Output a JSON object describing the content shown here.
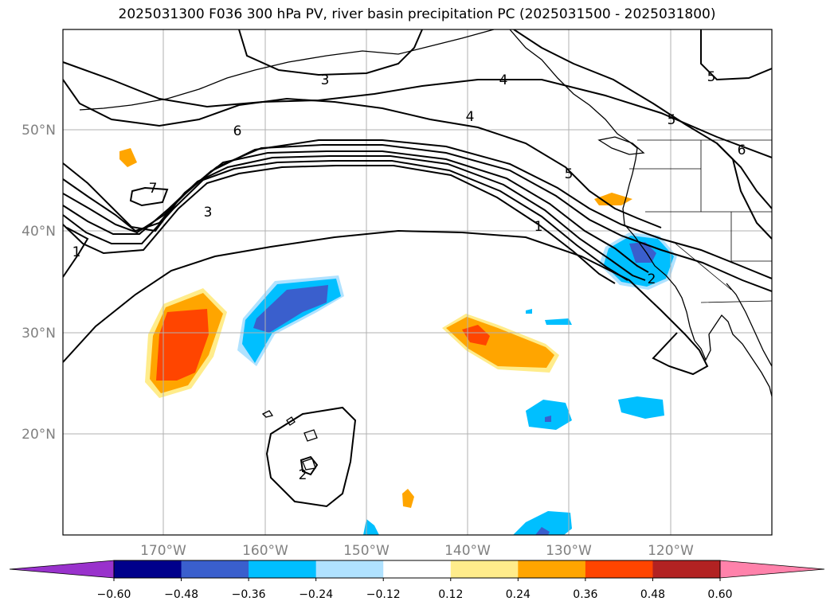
{
  "title": "2025031300 F036 300 hPa PV, river basin precipitation PC (2025031500 - 2025031800)",
  "map": {
    "lon_ticks": [
      "170°W",
      "160°W",
      "150°W",
      "140°W",
      "130°W",
      "120°W"
    ],
    "lat_ticks": [
      "50°N",
      "40°N",
      "30°N",
      "20°N"
    ],
    "grid": true,
    "tick_label_color": "#808080"
  },
  "pv_contour_labels": [
    "1",
    "1",
    "2",
    "2",
    "3",
    "3",
    "4",
    "4",
    "5",
    "5",
    "5",
    "6",
    "6",
    "7"
  ],
  "colorbar": {
    "ticks": [
      "−0.60",
      "−0.48",
      "−0.36",
      "−0.24",
      "−0.12",
      "0.12",
      "0.24",
      "0.36",
      "0.48",
      "0.60"
    ],
    "colors": [
      "#9932cc",
      "#00008b",
      "#3a5fcd",
      "#00bfff",
      "#b0e2ff",
      "#ffffff",
      "#ffec8b",
      "#ffa500",
      "#ff4500",
      "#b22222",
      "#ff82ab"
    ]
  }
}
